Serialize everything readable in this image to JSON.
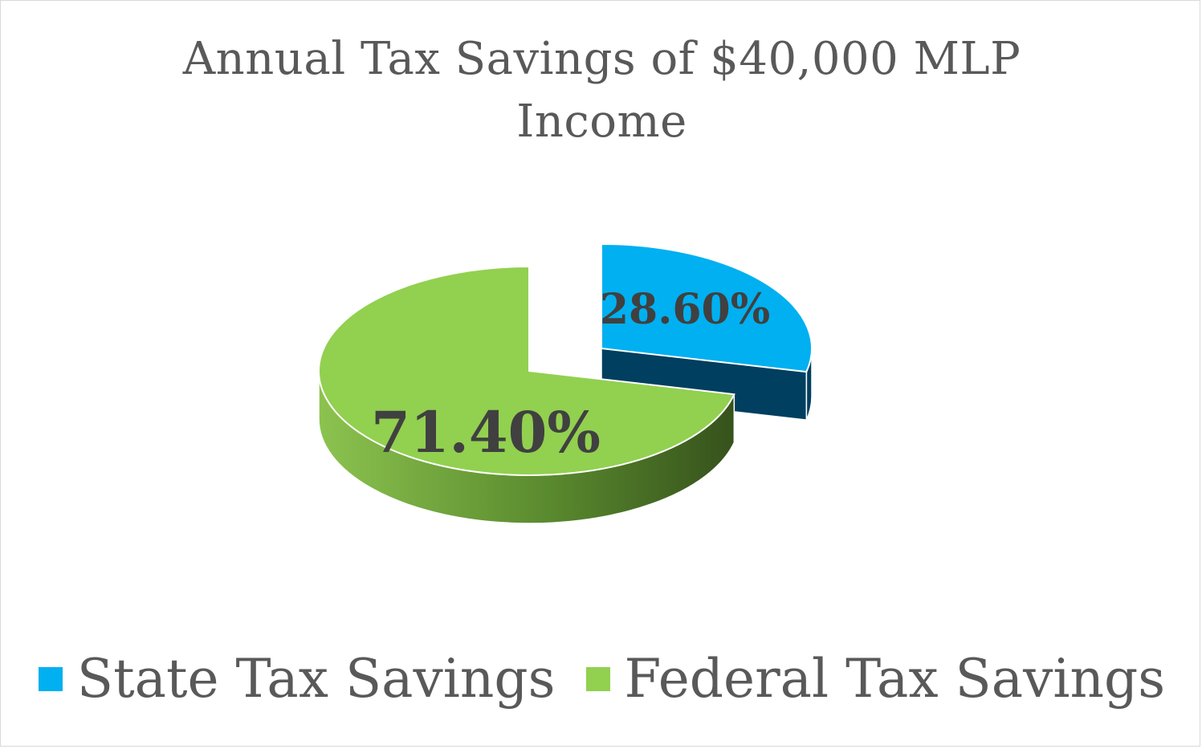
{
  "chart_data": {
    "type": "pie",
    "style": "3d-exploded",
    "title_lines": [
      "Annual Tax Savings of $40,000 MLP",
      "Income"
    ],
    "categories": [
      "State Tax Savings",
      "Federal Tax Savings"
    ],
    "values": [
      28.6,
      71.4
    ],
    "data_labels": [
      "28.60%",
      "71.40%"
    ],
    "colors": [
      "#00b0f0",
      "#92d050"
    ],
    "side_colors": [
      "#003f5f",
      "#4e7a2a"
    ],
    "legend_position": "bottom"
  }
}
